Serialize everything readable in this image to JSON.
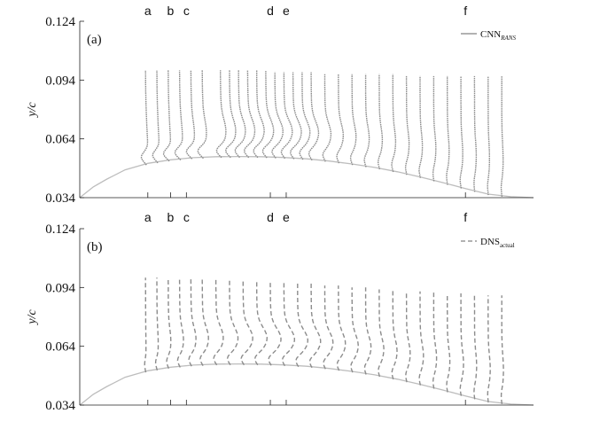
{
  "chart_data": [
    {
      "type": "line",
      "panel_label": "(a)",
      "ylabel": "y/c",
      "xlabel": "",
      "yticks": [
        "0.034",
        "0.064",
        "0.094",
        "0.124"
      ],
      "ylim": [
        0.034,
        0.124
      ],
      "xlim": [
        0.0,
        1.0
      ],
      "top_labels": [
        {
          "label": "a",
          "x": 0.15
        },
        {
          "label": "b",
          "x": 0.2
        },
        {
          "label": "c",
          "x": 0.235
        },
        {
          "label": "d",
          "x": 0.42
        },
        {
          "label": "e",
          "x": 0.455
        },
        {
          "label": "f",
          "x": 0.85
        }
      ],
      "legend": {
        "main": "CNN",
        "sub": "RANS",
        "sub_italic": true,
        "line_style": "solid"
      },
      "profile_color": "#8c8c8c",
      "surface_color": "#bdbdbd",
      "surface": {
        "x": [
          0.0,
          0.03,
          0.06,
          0.1,
          0.15,
          0.2,
          0.25,
          0.3,
          0.35,
          0.4,
          0.45,
          0.5,
          0.55,
          0.6,
          0.65,
          0.7,
          0.75,
          0.8,
          0.85,
          0.9,
          0.95,
          1.0
        ],
        "y": [
          0.034,
          0.0395,
          0.0435,
          0.0482,
          0.0515,
          0.0533,
          0.0544,
          0.0549,
          0.055,
          0.0549,
          0.0545,
          0.0538,
          0.0527,
          0.0512,
          0.0494,
          0.0472,
          0.0446,
          0.0417,
          0.0386,
          0.0358,
          0.0345,
          0.034
        ]
      },
      "profiles": [
        {
          "x": 0.145,
          "y_top": 0.099,
          "bulge": 0.0,
          "dip": 0.018
        },
        {
          "x": 0.17,
          "y_top": 0.099,
          "bulge": 0.0,
          "dip": 0.018
        },
        {
          "x": 0.195,
          "y_top": 0.099,
          "bulge": 0.0,
          "dip": 0.02
        },
        {
          "x": 0.22,
          "y_top": 0.099,
          "bulge": 0.002,
          "dip": 0.02
        },
        {
          "x": 0.245,
          "y_top": 0.099,
          "bulge": 0.004,
          "dip": 0.02
        },
        {
          "x": 0.27,
          "y_top": 0.099,
          "bulge": 0.006,
          "dip": 0.02
        },
        {
          "x": 0.31,
          "y_top": 0.099,
          "bulge": 0.01,
          "dip": 0.019
        },
        {
          "x": 0.33,
          "y_top": 0.099,
          "bulge": 0.012,
          "dip": 0.019
        },
        {
          "x": 0.35,
          "y_top": 0.099,
          "bulge": 0.014,
          "dip": 0.018
        },
        {
          "x": 0.37,
          "y_top": 0.099,
          "bulge": 0.015,
          "dip": 0.018
        },
        {
          "x": 0.39,
          "y_top": 0.099,
          "bulge": 0.016,
          "dip": 0.017
        },
        {
          "x": 0.41,
          "y_top": 0.099,
          "bulge": 0.017,
          "dip": 0.017
        },
        {
          "x": 0.43,
          "y_top": 0.098,
          "bulge": 0.018,
          "dip": 0.016
        },
        {
          "x": 0.45,
          "y_top": 0.098,
          "bulge": 0.019,
          "dip": 0.015
        },
        {
          "x": 0.47,
          "y_top": 0.098,
          "bulge": 0.019,
          "dip": 0.015
        },
        {
          "x": 0.49,
          "y_top": 0.098,
          "bulge": 0.018,
          "dip": 0.014
        },
        {
          "x": 0.51,
          "y_top": 0.098,
          "bulge": 0.017,
          "dip": 0.013
        },
        {
          "x": 0.54,
          "y_top": 0.097,
          "bulge": 0.014,
          "dip": 0.011
        },
        {
          "x": 0.57,
          "y_top": 0.097,
          "bulge": 0.011,
          "dip": 0.009
        },
        {
          "x": 0.6,
          "y_top": 0.097,
          "bulge": 0.009,
          "dip": 0.008
        },
        {
          "x": 0.63,
          "y_top": 0.097,
          "bulge": 0.008,
          "dip": 0.007
        },
        {
          "x": 0.66,
          "y_top": 0.097,
          "bulge": 0.007,
          "dip": 0.006
        },
        {
          "x": 0.69,
          "y_top": 0.097,
          "bulge": 0.006,
          "dip": 0.006
        },
        {
          "x": 0.72,
          "y_top": 0.096,
          "bulge": 0.006,
          "dip": 0.005
        },
        {
          "x": 0.75,
          "y_top": 0.096,
          "bulge": 0.005,
          "dip": 0.005
        },
        {
          "x": 0.78,
          "y_top": 0.096,
          "bulge": 0.005,
          "dip": 0.004
        },
        {
          "x": 0.81,
          "y_top": 0.096,
          "bulge": 0.004,
          "dip": 0.004
        },
        {
          "x": 0.84,
          "y_top": 0.096,
          "bulge": 0.004,
          "dip": 0.004
        },
        {
          "x": 0.87,
          "y_top": 0.096,
          "bulge": 0.004,
          "dip": 0.003
        },
        {
          "x": 0.9,
          "y_top": 0.096,
          "bulge": 0.003,
          "dip": 0.003
        },
        {
          "x": 0.93,
          "y_top": 0.096,
          "bulge": 0.003,
          "dip": 0.003
        }
      ]
    },
    {
      "type": "line",
      "panel_label": "(b)",
      "ylabel": "y/c",
      "xlabel": "",
      "yticks": [
        "0.034",
        "0.064",
        "0.094",
        "0.124"
      ],
      "ylim": [
        0.034,
        0.124
      ],
      "xlim": [
        0.0,
        1.0
      ],
      "top_labels": [
        {
          "label": "a",
          "x": 0.15
        },
        {
          "label": "b",
          "x": 0.2
        },
        {
          "label": "c",
          "x": 0.235
        },
        {
          "label": "d",
          "x": 0.42
        },
        {
          "label": "e",
          "x": 0.455
        },
        {
          "label": "f",
          "x": 0.85
        }
      ],
      "legend": {
        "main": "DNS",
        "sub": "actual",
        "sub_italic": false,
        "line_style": "dashed"
      },
      "profile_color": "#8c8c8c",
      "surface_color": "#bdbdbd",
      "surface": {
        "x": [
          0.0,
          0.03,
          0.06,
          0.1,
          0.15,
          0.2,
          0.25,
          0.3,
          0.35,
          0.4,
          0.45,
          0.5,
          0.55,
          0.6,
          0.65,
          0.7,
          0.75,
          0.8,
          0.85,
          0.9,
          0.95,
          1.0
        ],
        "y": [
          0.034,
          0.0395,
          0.0435,
          0.0482,
          0.0515,
          0.0533,
          0.0544,
          0.0549,
          0.055,
          0.0549,
          0.0545,
          0.0538,
          0.0527,
          0.0512,
          0.0494,
          0.0472,
          0.0446,
          0.0417,
          0.0386,
          0.0358,
          0.0345,
          0.034
        ]
      },
      "profiles": [
        {
          "x": 0.145,
          "y_top": 0.099,
          "bulge": 0.0,
          "dip": 0.004
        },
        {
          "x": 0.17,
          "y_top": 0.099,
          "bulge": 0.002,
          "dip": 0.006
        },
        {
          "x": 0.195,
          "y_top": 0.099,
          "bulge": 0.005,
          "dip": 0.008
        },
        {
          "x": 0.22,
          "y_top": 0.099,
          "bulge": 0.008,
          "dip": 0.01
        },
        {
          "x": 0.245,
          "y_top": 0.099,
          "bulge": 0.011,
          "dip": 0.011
        },
        {
          "x": 0.27,
          "y_top": 0.099,
          "bulge": 0.014,
          "dip": 0.012
        },
        {
          "x": 0.3,
          "y_top": 0.099,
          "bulge": 0.017,
          "dip": 0.013
        },
        {
          "x": 0.33,
          "y_top": 0.098,
          "bulge": 0.02,
          "dip": 0.013
        },
        {
          "x": 0.36,
          "y_top": 0.098,
          "bulge": 0.023,
          "dip": 0.013
        },
        {
          "x": 0.39,
          "y_top": 0.098,
          "bulge": 0.025,
          "dip": 0.013
        },
        {
          "x": 0.42,
          "y_top": 0.097,
          "bulge": 0.026,
          "dip": 0.013
        },
        {
          "x": 0.45,
          "y_top": 0.097,
          "bulge": 0.026,
          "dip": 0.012
        },
        {
          "x": 0.48,
          "y_top": 0.096,
          "bulge": 0.025,
          "dip": 0.012
        },
        {
          "x": 0.51,
          "y_top": 0.096,
          "bulge": 0.023,
          "dip": 0.011
        },
        {
          "x": 0.54,
          "y_top": 0.095,
          "bulge": 0.02,
          "dip": 0.01
        },
        {
          "x": 0.57,
          "y_top": 0.095,
          "bulge": 0.017,
          "dip": 0.009
        },
        {
          "x": 0.6,
          "y_top": 0.094,
          "bulge": 0.015,
          "dip": 0.008
        },
        {
          "x": 0.63,
          "y_top": 0.094,
          "bulge": 0.013,
          "dip": 0.007
        },
        {
          "x": 0.66,
          "y_top": 0.093,
          "bulge": 0.011,
          "dip": 0.006
        },
        {
          "x": 0.69,
          "y_top": 0.093,
          "bulge": 0.01,
          "dip": 0.006
        },
        {
          "x": 0.72,
          "y_top": 0.092,
          "bulge": 0.009,
          "dip": 0.005
        },
        {
          "x": 0.75,
          "y_top": 0.092,
          "bulge": 0.008,
          "dip": 0.005
        },
        {
          "x": 0.78,
          "y_top": 0.092,
          "bulge": 0.007,
          "dip": 0.004
        },
        {
          "x": 0.81,
          "y_top": 0.091,
          "bulge": 0.006,
          "dip": 0.004
        },
        {
          "x": 0.84,
          "y_top": 0.091,
          "bulge": 0.006,
          "dip": 0.004
        },
        {
          "x": 0.87,
          "y_top": 0.091,
          "bulge": 0.005,
          "dip": 0.003
        },
        {
          "x": 0.9,
          "y_top": 0.09,
          "bulge": 0.005,
          "dip": 0.003
        },
        {
          "x": 0.93,
          "y_top": 0.09,
          "bulge": 0.004,
          "dip": 0.003
        }
      ]
    }
  ]
}
